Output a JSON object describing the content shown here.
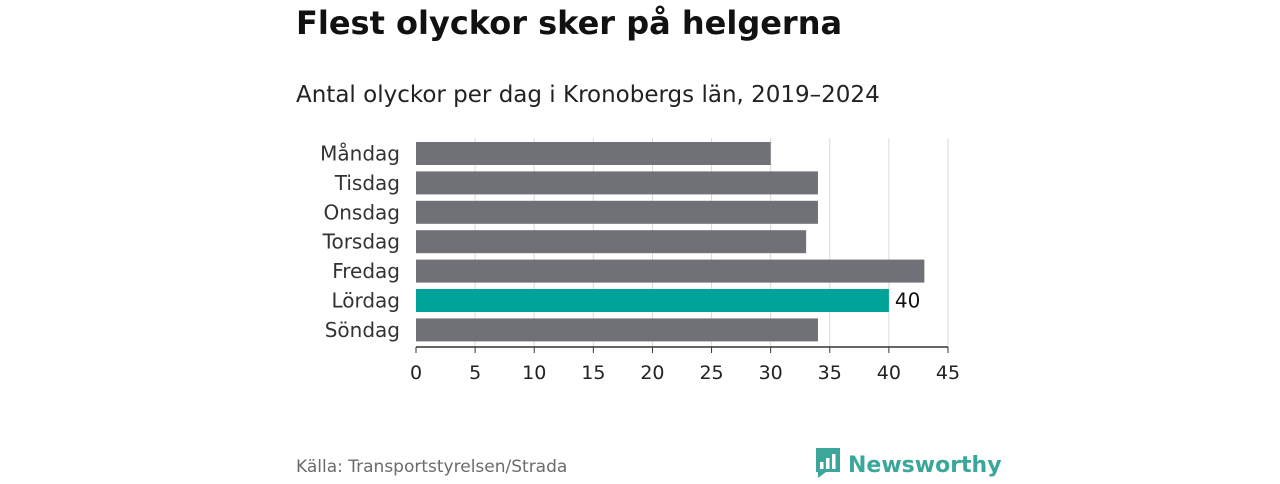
{
  "title": "Flest olyckor sker på helgerna",
  "subtitle": "Antal olyckor per dag i Kronobergs län, 2019–2024",
  "source": "Källa: Transportstyrelsen/Strada",
  "brand": {
    "name": "Newsworthy",
    "logo_icon": "bar-chart-speech-bubble-icon"
  },
  "colors": {
    "bar_default": "#707077",
    "bar_highlight": "#00a398",
    "grid": "#d9d9d9",
    "axis": "#333333",
    "brand": "#3aa79a"
  },
  "chart_data": {
    "type": "bar",
    "orientation": "horizontal",
    "categories": [
      "Måndag",
      "Tisdag",
      "Onsdag",
      "Torsdag",
      "Fredag",
      "Lördag",
      "Söndag"
    ],
    "values": [
      30,
      34,
      34,
      33,
      43,
      40,
      34
    ],
    "highlight": "Lördag",
    "data_labels": [
      {
        "category": "Lördag",
        "text": "40"
      }
    ],
    "xlim": [
      0,
      45
    ],
    "xticks": [
      0,
      5,
      10,
      15,
      20,
      25,
      30,
      35,
      40,
      45
    ],
    "title": "Flest olyckor sker på helgerna",
    "subtitle": "Antal olyckor per dag i Kronobergs län, 2019–2024",
    "grid": true,
    "legend": "none"
  }
}
